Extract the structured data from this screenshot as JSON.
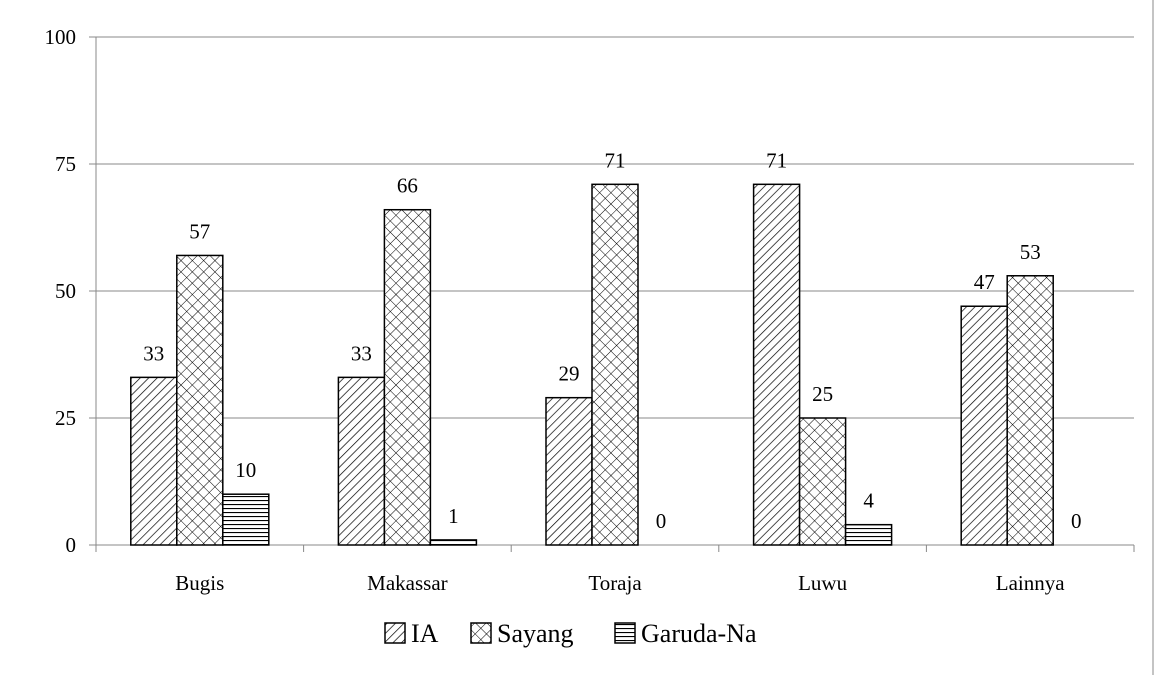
{
  "chart_data": {
    "type": "bar",
    "categories": [
      "Bugis",
      "Makassar",
      "Toraja",
      "Luwu",
      "Lainnya"
    ],
    "series": [
      {
        "name": "IA",
        "values": [
          33,
          33,
          29,
          71,
          47
        ],
        "pattern": "diagonal-hatch"
      },
      {
        "name": "Sayang",
        "values": [
          57,
          66,
          71,
          25,
          53
        ],
        "pattern": "crosshatch"
      },
      {
        "name": "Garuda-Na",
        "values": [
          10,
          1,
          0,
          4,
          0
        ],
        "pattern": "horizontal-lines"
      }
    ],
    "data_labels": [
      [
        "33",
        "57",
        "10"
      ],
      [
        "33",
        "66",
        "1"
      ],
      [
        "29",
        "71",
        "0"
      ],
      [
        "71",
        "25",
        "4"
      ],
      [
        "47",
        "53",
        "0"
      ]
    ],
    "title": "",
    "xlabel": "",
    "ylabel": "",
    "ylim": [
      0,
      100
    ],
    "yticks": [
      0,
      25,
      50,
      75,
      100
    ],
    "ytick_labels": [
      "0",
      "25",
      "50",
      "75",
      "100"
    ],
    "grid": "horizontal",
    "legend": "bottom-center",
    "colors": {
      "bar_fill": "#ffffff",
      "stroke": "#000000",
      "grid": "#888888",
      "axis": "#888888"
    }
  }
}
